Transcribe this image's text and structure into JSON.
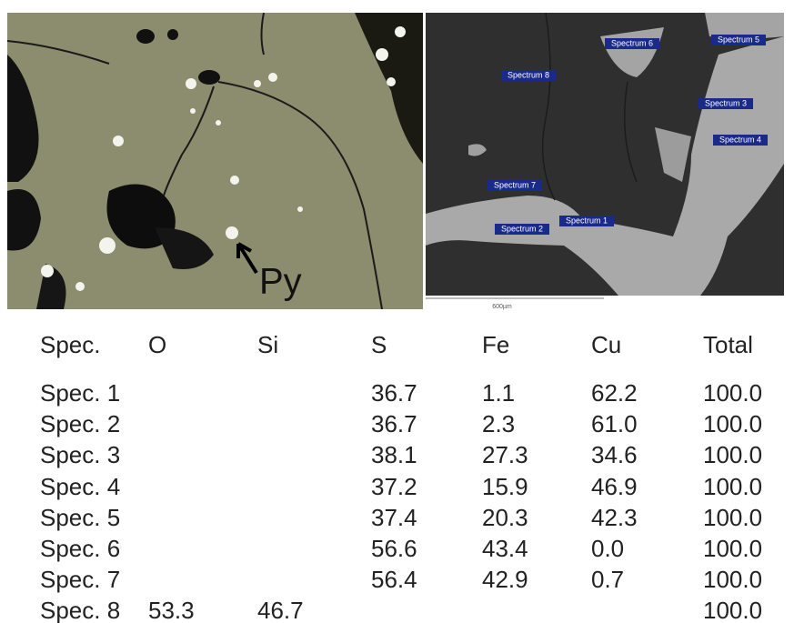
{
  "figure": {
    "optical_label": "Py",
    "sem_labels": [
      "Spectrum 1",
      "Spectrum 2",
      "Spectrum 3",
      "Spectrum 4",
      "Spectrum 5",
      "Spectrum 6",
      "Spectrum 7",
      "Spectrum 8"
    ],
    "scale_bar": "600µm"
  },
  "table": {
    "headers": [
      "Spec.",
      "O",
      "Si",
      "S",
      "Fe",
      "Cu",
      "Total"
    ],
    "rows": [
      {
        "label": "Spec. 1",
        "cells": {
          "S": "36.7",
          "Fe": "1.1",
          "Cu": "62.2",
          "Total": "100.0"
        }
      },
      {
        "label": "Spec. 2",
        "cells": {
          "S": "36.7",
          "Fe": "2.3",
          "Cu": "61.0",
          "Total": "100.0"
        }
      },
      {
        "label": "Spec. 3",
        "cells": {
          "S": "38.1",
          "Fe": "27.3",
          "Cu": "34.6",
          "Total": "100.0"
        }
      },
      {
        "label": "Spec. 4",
        "cells": {
          "S": "37.2",
          "Fe": "15.9",
          "Cu": "46.9",
          "Total": "100.0"
        }
      },
      {
        "label": "Spec. 5",
        "cells": {
          "S": "37.4",
          "Fe": "20.3",
          "Cu": "42.3",
          "Total": "100.0"
        }
      },
      {
        "label": "Spec. 6",
        "cells": {
          "S": "56.6",
          "Fe": "43.4",
          "Cu": "0.0",
          "Total": "100.0"
        }
      },
      {
        "label": "Spec. 7",
        "cells": {
          "S": "56.4",
          "Fe": "42.9",
          "Cu": "0.7",
          "Total": "100.0"
        }
      },
      {
        "label": "Spec. 8",
        "cells": {
          "O": "53.3",
          "Si": "46.7",
          "Total": "100.0"
        }
      }
    ]
  }
}
